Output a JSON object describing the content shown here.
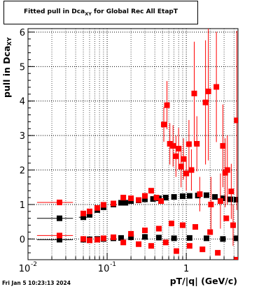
{
  "title": {
    "main": "Fitted pull in Dca",
    "sub": "XY",
    "suffix": " for Global Rec All EtapT"
  },
  "timestamp": "Fri Jan  5 10:23:13 2024",
  "colors": {
    "red": "#ff0000",
    "black": "#000000",
    "grid": "#000000"
  },
  "chart_data": {
    "type": "scatter",
    "title": "Fitted pull in Dca_XY for Global Rec All EtapT",
    "xlabel": "pT/|q| (GeV/c)",
    "ylabel": "pull in Dca_XY",
    "xscale": "log",
    "xlim": [
      0.01,
      4.5
    ],
    "ylim": [
      -0.6,
      6.1
    ],
    "grid": true,
    "xticks": [
      {
        "value": 0.01,
        "label": "10",
        "exp": "-2"
      },
      {
        "value": 0.1,
        "label": "10",
        "exp": "-1"
      },
      {
        "value": 1,
        "label": "1",
        "exp": ""
      }
    ],
    "yticks": [
      0,
      1,
      2,
      3,
      4,
      5,
      6
    ],
    "series": [
      {
        "name": "",
        "color": "#000000",
        "marker": "square",
        "points": [
          {
            "x": 0.025,
            "y": 0.6,
            "xerr": 0.012
          },
          {
            "x": 0.05,
            "y": 0.63,
            "xerr": 0.006
          },
          {
            "x": 0.06,
            "y": 0.7,
            "xerr": 0.005
          },
          {
            "x": 0.075,
            "y": 0.84
          },
          {
            "x": 0.09,
            "y": 0.92
          },
          {
            "x": 0.12,
            "y": 1.0
          },
          {
            "x": 0.15,
            "y": 1.05
          },
          {
            "x": 0.17,
            "y": 1.05
          },
          {
            "x": 0.2,
            "y": 1.1
          },
          {
            "x": 0.25,
            "y": 1.12
          },
          {
            "x": 0.3,
            "y": 1.15
          },
          {
            "x": 0.38,
            "y": 1.16
          },
          {
            "x": 0.45,
            "y": 1.18
          },
          {
            "x": 0.55,
            "y": 1.2
          },
          {
            "x": 0.7,
            "y": 1.22
          },
          {
            "x": 0.9,
            "y": 1.24
          },
          {
            "x": 1.1,
            "y": 1.25
          },
          {
            "x": 1.4,
            "y": 1.26
          },
          {
            "x": 1.8,
            "y": 1.27
          },
          {
            "x": 2.3,
            "y": 1.22
          },
          {
            "x": 2.9,
            "y": 1.18
          },
          {
            "x": 3.6,
            "y": 1.15
          },
          {
            "x": 4.3,
            "y": 1.14
          },
          {
            "x": 0.025,
            "y": -0.02,
            "xerr": 0.012
          },
          {
            "x": 0.05,
            "y": -0.02
          },
          {
            "x": 0.06,
            "y": -0.01
          },
          {
            "x": 0.075,
            "y": 0.0
          },
          {
            "x": 0.09,
            "y": 0.0
          },
          {
            "x": 0.12,
            "y": 0.02
          },
          {
            "x": 0.15,
            "y": 0.03
          },
          {
            "x": 0.2,
            "y": 0.05
          },
          {
            "x": 0.3,
            "y": 0.06
          },
          {
            "x": 0.45,
            "y": 0.04
          },
          {
            "x": 0.7,
            "y": 0.02
          },
          {
            "x": 1.1,
            "y": 0.03
          },
          {
            "x": 1.8,
            "y": 0.02
          },
          {
            "x": 2.9,
            "y": 0.0
          },
          {
            "x": 4.3,
            "y": 0.02
          }
        ]
      },
      {
        "name": "",
        "color": "#ff0000",
        "marker": "square",
        "points": [
          {
            "x": 0.025,
            "y": 1.06,
            "xerr": 0.012
          },
          {
            "x": 0.05,
            "y": 0.74
          },
          {
            "x": 0.06,
            "y": 0.8
          },
          {
            "x": 0.075,
            "y": 0.9
          },
          {
            "x": 0.09,
            "y": 0.99
          },
          {
            "x": 0.12,
            "y": 1.03
          },
          {
            "x": 0.16,
            "y": 1.2
          },
          {
            "x": 0.2,
            "y": 1.18
          },
          {
            "x": 0.25,
            "y": 1.13
          },
          {
            "x": 0.3,
            "y": 1.25
          },
          {
            "x": 0.36,
            "y": 1.4
          },
          {
            "x": 0.42,
            "y": 1.2
          },
          {
            "x": 0.48,
            "y": 1.1
          },
          {
            "x": 0.52,
            "y": 3.32,
            "yerr": 0.5
          },
          {
            "x": 0.57,
            "y": 3.88,
            "yerr": 0.7
          },
          {
            "x": 0.62,
            "y": 2.76,
            "yerr": 0.6
          },
          {
            "x": 0.68,
            "y": 2.7,
            "yerr": 0.6
          },
          {
            "x": 0.74,
            "y": 2.4,
            "yerr": 0.6
          },
          {
            "x": 0.8,
            "y": 2.62,
            "yerr": 0.6
          },
          {
            "x": 0.86,
            "y": 2.1,
            "yerr": 0.6
          },
          {
            "x": 0.92,
            "y": 2.32,
            "yerr": 0.6
          },
          {
            "x": 1.0,
            "y": 1.9,
            "yerr": 0.5
          },
          {
            "x": 1.08,
            "y": 2.75,
            "yerr": 0.7
          },
          {
            "x": 1.16,
            "y": 2.0,
            "yerr": 0.6
          },
          {
            "x": 1.26,
            "y": 4.22,
            "yerr": 1.5
          },
          {
            "x": 1.36,
            "y": 2.76,
            "yerr": 0.8
          },
          {
            "x": 1.48,
            "y": 1.3,
            "yerr": 0.5
          },
          {
            "x": 1.75,
            "y": 3.96,
            "yerr": 1.8
          },
          {
            "x": 1.9,
            "y": 4.28,
            "yerr": 2.0
          },
          {
            "x": 2.05,
            "y": 1.0,
            "yerr": 0.8
          },
          {
            "x": 2.4,
            "y": 4.41,
            "yerr": 1.6
          },
          {
            "x": 2.7,
            "y": 1.1,
            "yerr": 0.8
          },
          {
            "x": 2.9,
            "y": 2.7,
            "yerr": 1.2
          },
          {
            "x": 3.1,
            "y": 1.92,
            "yerr": 1.0
          },
          {
            "x": 3.3,
            "y": 2.0,
            "yerr": 1.0
          },
          {
            "x": 3.7,
            "y": 1.38,
            "yerr": 0.8
          },
          {
            "x": 3.9,
            "y": 0.4,
            "yerr": 0.6
          },
          {
            "x": 4.35,
            "y": 3.44,
            "yerr": 2.6
          },
          {
            "x": 0.025,
            "y": 0.1,
            "xerr": 0.012
          },
          {
            "x": 0.05,
            "y": 0.0
          },
          {
            "x": 0.06,
            "y": -0.04
          },
          {
            "x": 0.075,
            "y": -0.02
          },
          {
            "x": 0.09,
            "y": 0.02
          },
          {
            "x": 0.12,
            "y": 0.05
          },
          {
            "x": 0.16,
            "y": -0.1
          },
          {
            "x": 0.2,
            "y": 0.15
          },
          {
            "x": 0.25,
            "y": -0.15
          },
          {
            "x": 0.3,
            "y": 0.25
          },
          {
            "x": 0.36,
            "y": -0.2
          },
          {
            "x": 0.45,
            "y": 0.3
          },
          {
            "x": 0.55,
            "y": -0.1
          },
          {
            "x": 0.65,
            "y": 0.45
          },
          {
            "x": 0.75,
            "y": -0.35
          },
          {
            "x": 0.9,
            "y": 0.4
          },
          {
            "x": 1.1,
            "y": -0.2
          },
          {
            "x": 1.3,
            "y": 0.35
          },
          {
            "x": 1.6,
            "y": -0.3
          },
          {
            "x": 2.0,
            "y": 0.2
          },
          {
            "x": 2.5,
            "y": -0.4
          },
          {
            "x": 3.2,
            "y": 0.6
          },
          {
            "x": 4.35,
            "y": -0.6
          }
        ]
      }
    ]
  }
}
